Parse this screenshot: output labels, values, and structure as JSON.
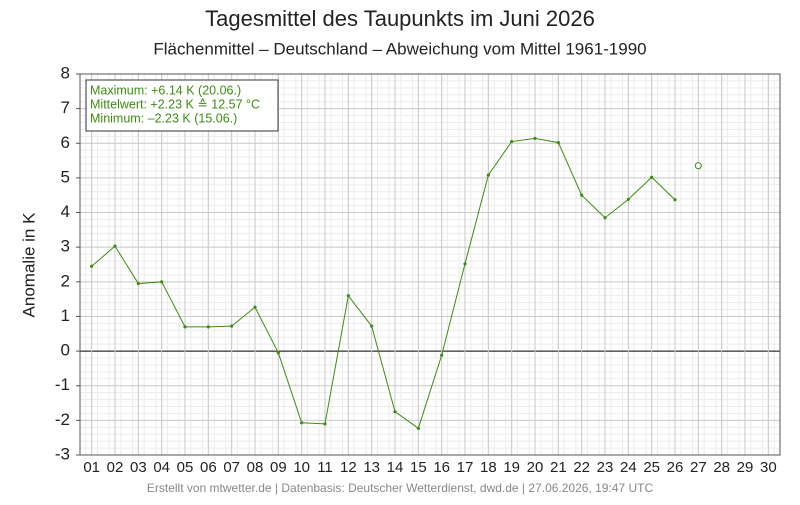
{
  "chart_data": {
    "type": "line",
    "title": "Tagesmittel des Taupunkts im Juni 2026",
    "subtitle": "Flächenmittel – Deutschland – Abweichung vom Mittel 1961-1990",
    "y_label": "Anomalie in K",
    "annotation": [
      "Maximum: +6.14 K  (20.06.)",
      "Mittelwert: +2.23 K  ≙  12.57 °C",
      "Minimum:  –2.23 K  (15.06.)"
    ],
    "footer": "Erstellt von mtwetter.de | Datenbasis: Deutscher Wetterdienst, dwd.de | 27.06.2026, 19:47 UTC",
    "categories": [
      "01",
      "02",
      "03",
      "04",
      "05",
      "06",
      "07",
      "08",
      "09",
      "10",
      "11",
      "12",
      "13",
      "14",
      "15",
      "16",
      "17",
      "18",
      "19",
      "20",
      "21",
      "22",
      "23",
      "24",
      "25",
      "26",
      "27",
      "28",
      "29",
      "30"
    ],
    "values": [
      2.45,
      3.03,
      1.95,
      2.0,
      0.7,
      0.7,
      0.72,
      1.27,
      -0.05,
      -2.07,
      -2.1,
      1.6,
      0.72,
      -1.75,
      -2.23,
      -0.12,
      2.52,
      5.08,
      6.05,
      6.14,
      6.02,
      4.5,
      3.85,
      4.38,
      5.02,
      4.37,
      null,
      null,
      null,
      null
    ],
    "color": "#3d8c12",
    "open_marker": {
      "category": 26,
      "value": 5.35
    },
    "ylim": [
      -3,
      8
    ],
    "yticks": [
      -3,
      -2,
      -1,
      0,
      1,
      2,
      3,
      4,
      5,
      6,
      7,
      8
    ],
    "grid": true,
    "minor_grid": true
  }
}
